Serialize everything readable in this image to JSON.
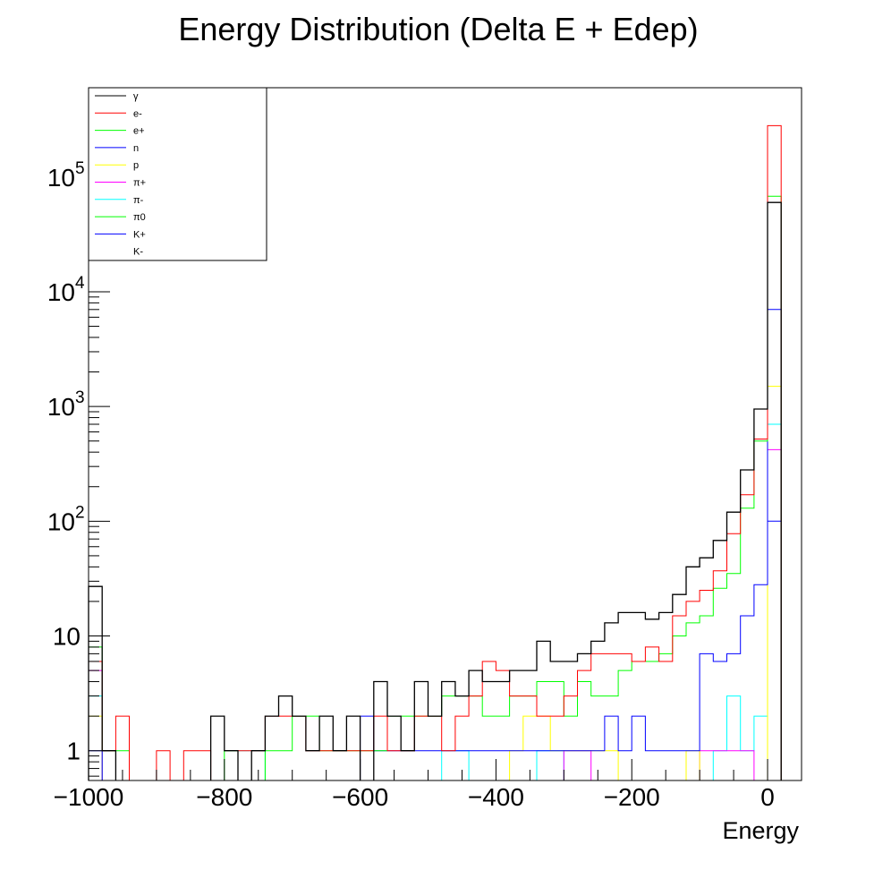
{
  "chart_data": {
    "type": "line",
    "subtype": "step-histogram",
    "title": "Energy Distribution (Delta E + Edep)",
    "xlabel": "Energy",
    "ylabel": "",
    "xlim": [
      -1000,
      50
    ],
    "ylim": [
      0.55,
      600000
    ],
    "yscale": "log",
    "bin_width": 20,
    "x_ticks": [
      -1000,
      -800,
      -600,
      -400,
      -200,
      0
    ],
    "x_tick_labels": [
      "−1000",
      "−800",
      "−600",
      "−400",
      "−200",
      "0"
    ],
    "y_ticks": [
      1,
      10,
      100,
      1000,
      10000,
      100000
    ],
    "y_tick_labels": [
      {
        "base": "1",
        "exp": ""
      },
      {
        "base": "10",
        "exp": ""
      },
      {
        "base": "10",
        "exp": "2"
      },
      {
        "base": "10",
        "exp": "3"
      },
      {
        "base": "10",
        "exp": "4"
      },
      {
        "base": "10",
        "exp": "5"
      }
    ],
    "grid": false,
    "legend_position": "top-left",
    "series": [
      {
        "name": "γ",
        "color": "#000000",
        "width": 1.3,
        "bins": [
          [
            -1000,
            27
          ],
          [
            -980,
            1
          ],
          [
            -820,
            2
          ],
          [
            -800,
            1
          ],
          [
            -760,
            1
          ],
          [
            -740,
            2
          ],
          [
            -720,
            3
          ],
          [
            -700,
            2
          ],
          [
            -680,
            1
          ],
          [
            -660,
            2
          ],
          [
            -640,
            1
          ],
          [
            -620,
            2
          ],
          [
            -580,
            4
          ],
          [
            -560,
            2
          ],
          [
            -540,
            1
          ],
          [
            -520,
            4
          ],
          [
            -500,
            2
          ],
          [
            -480,
            4
          ],
          [
            -460,
            3
          ],
          [
            -440,
            5
          ],
          [
            -420,
            4
          ],
          [
            -400,
            4
          ],
          [
            -380,
            5
          ],
          [
            -360,
            5
          ],
          [
            -340,
            9
          ],
          [
            -320,
            6
          ],
          [
            -300,
            6
          ],
          [
            -280,
            7
          ],
          [
            -260,
            9
          ],
          [
            -240,
            13
          ],
          [
            -220,
            16
          ],
          [
            -200,
            16
          ],
          [
            -180,
            14
          ],
          [
            -160,
            16
          ],
          [
            -140,
            23
          ],
          [
            -120,
            40
          ],
          [
            -100,
            48
          ],
          [
            -80,
            68
          ],
          [
            -60,
            120
          ],
          [
            -40,
            280
          ],
          [
            -20,
            950
          ],
          [
            0,
            60000
          ]
        ]
      },
      {
        "name": "e-",
        "color": "#ff0000",
        "width": 1.0,
        "bins": [
          [
            -1000,
            6
          ],
          [
            -980,
            1
          ],
          [
            -960,
            2
          ],
          [
            -900,
            1
          ],
          [
            -860,
            1
          ],
          [
            -840,
            1
          ],
          [
            -780,
            1
          ],
          [
            -760,
            1
          ],
          [
            -740,
            2
          ],
          [
            -720,
            2
          ],
          [
            -700,
            2
          ],
          [
            -680,
            1
          ],
          [
            -660,
            1
          ],
          [
            -640,
            1
          ],
          [
            -620,
            1
          ],
          [
            -600,
            1
          ],
          [
            -580,
            2
          ],
          [
            -560,
            1
          ],
          [
            -540,
            1
          ],
          [
            -520,
            2
          ],
          [
            -500,
            2
          ],
          [
            -480,
            1
          ],
          [
            -460,
            2
          ],
          [
            -440,
            3
          ],
          [
            -420,
            6
          ],
          [
            -400,
            5
          ],
          [
            -380,
            3
          ],
          [
            -360,
            3
          ],
          [
            -340,
            2
          ],
          [
            -320,
            2
          ],
          [
            -300,
            3
          ],
          [
            -280,
            5
          ],
          [
            -260,
            7
          ],
          [
            -240,
            7
          ],
          [
            -220,
            7
          ],
          [
            -200,
            6
          ],
          [
            -180,
            8
          ],
          [
            -160,
            6
          ],
          [
            -140,
            15
          ],
          [
            -120,
            20
          ],
          [
            -100,
            25
          ],
          [
            -80,
            37
          ],
          [
            -60,
            78
          ],
          [
            -40,
            170
          ],
          [
            -20,
            520
          ],
          [
            0,
            280000
          ]
        ]
      },
      {
        "name": "e+",
        "color": "#00ff00",
        "width": 1.0,
        "bins": [
          [
            -1000,
            8
          ],
          [
            -980,
            1
          ],
          [
            -960,
            1
          ],
          [
            -800,
            1
          ],
          [
            -740,
            1
          ],
          [
            -720,
            1
          ],
          [
            -700,
            2
          ],
          [
            -680,
            2
          ],
          [
            -660,
            1
          ],
          [
            -640,
            1
          ],
          [
            -620,
            1
          ],
          [
            -600,
            1
          ],
          [
            -580,
            1
          ],
          [
            -560,
            2
          ],
          [
            -540,
            2
          ],
          [
            -520,
            2
          ],
          [
            -500,
            2
          ],
          [
            -480,
            3
          ],
          [
            -460,
            3
          ],
          [
            -440,
            3
          ],
          [
            -420,
            2
          ],
          [
            -400,
            2
          ],
          [
            -380,
            3
          ],
          [
            -360,
            3
          ],
          [
            -340,
            4
          ],
          [
            -320,
            4
          ],
          [
            -300,
            2
          ],
          [
            -280,
            4
          ],
          [
            -260,
            3
          ],
          [
            -240,
            3
          ],
          [
            -220,
            5
          ],
          [
            -200,
            6
          ],
          [
            -180,
            6
          ],
          [
            -160,
            7
          ],
          [
            -140,
            10
          ],
          [
            -120,
            13
          ],
          [
            -100,
            15
          ],
          [
            -80,
            26
          ],
          [
            -60,
            35
          ],
          [
            -40,
            130
          ],
          [
            -20,
            500
          ],
          [
            0,
            68000
          ]
        ]
      },
      {
        "name": "n",
        "color": "#0000ff",
        "width": 1.0,
        "bins": [
          [
            -1000,
            1
          ],
          [
            -600,
            2
          ],
          [
            -580,
            1
          ],
          [
            -560,
            1
          ],
          [
            -540,
            1
          ],
          [
            -520,
            1
          ],
          [
            -500,
            1
          ],
          [
            -480,
            1
          ],
          [
            -460,
            1
          ],
          [
            -440,
            1
          ],
          [
            -420,
            1
          ],
          [
            -400,
            1
          ],
          [
            -380,
            1
          ],
          [
            -360,
            1
          ],
          [
            -340,
            1
          ],
          [
            -320,
            1
          ],
          [
            -300,
            1
          ],
          [
            -280,
            1
          ],
          [
            -260,
            1
          ],
          [
            -240,
            2
          ],
          [
            -220,
            1
          ],
          [
            -200,
            2
          ],
          [
            -180,
            1
          ],
          [
            -160,
            1
          ],
          [
            -140,
            1
          ],
          [
            -120,
            1
          ],
          [
            -100,
            7
          ],
          [
            -80,
            6
          ],
          [
            -60,
            7
          ],
          [
            -40,
            15
          ],
          [
            -20,
            28
          ],
          [
            0,
            7000
          ]
        ]
      },
      {
        "name": "p",
        "color": "#ffff00",
        "width": 1.0,
        "bins": [
          [
            -1000,
            2
          ],
          [
            -380,
            1
          ],
          [
            -360,
            2
          ],
          [
            -340,
            2
          ],
          [
            -320,
            1
          ],
          [
            -300,
            1
          ],
          [
            -280,
            1
          ],
          [
            -260,
            1
          ],
          [
            -240,
            1
          ],
          [
            -120,
            1
          ],
          [
            0,
            1500
          ]
        ]
      },
      {
        "name": "π+",
        "color": "#ff00ff",
        "width": 1.0,
        "bins": [
          [
            -1000,
            5
          ],
          [
            -300,
            1
          ],
          [
            -280,
            1
          ],
          [
            -100,
            1
          ],
          [
            -80,
            1
          ],
          [
            -60,
            1
          ],
          [
            -40,
            1
          ],
          [
            0,
            420
          ]
        ]
      },
      {
        "name": "π-",
        "color": "#00ffff",
        "width": 1.0,
        "bins": [
          [
            -1000,
            3
          ],
          [
            -780,
            1
          ],
          [
            -760,
            1
          ],
          [
            -480,
            1
          ],
          [
            -460,
            1
          ],
          [
            -340,
            1
          ],
          [
            -320,
            1
          ],
          [
            -80,
            1
          ],
          [
            -60,
            3
          ],
          [
            -40,
            1
          ],
          [
            -20,
            2
          ],
          [
            0,
            700
          ]
        ]
      },
      {
        "name": "π0",
        "color": "#00ff00",
        "width": 1.0,
        "bins": []
      },
      {
        "name": "K+",
        "color": "#0000ff",
        "width": 1.0,
        "bins": [
          [
            0,
            100
          ]
        ]
      },
      {
        "name": "K-",
        "color": "#ffffff",
        "width": 1.0,
        "bins": []
      }
    ]
  }
}
